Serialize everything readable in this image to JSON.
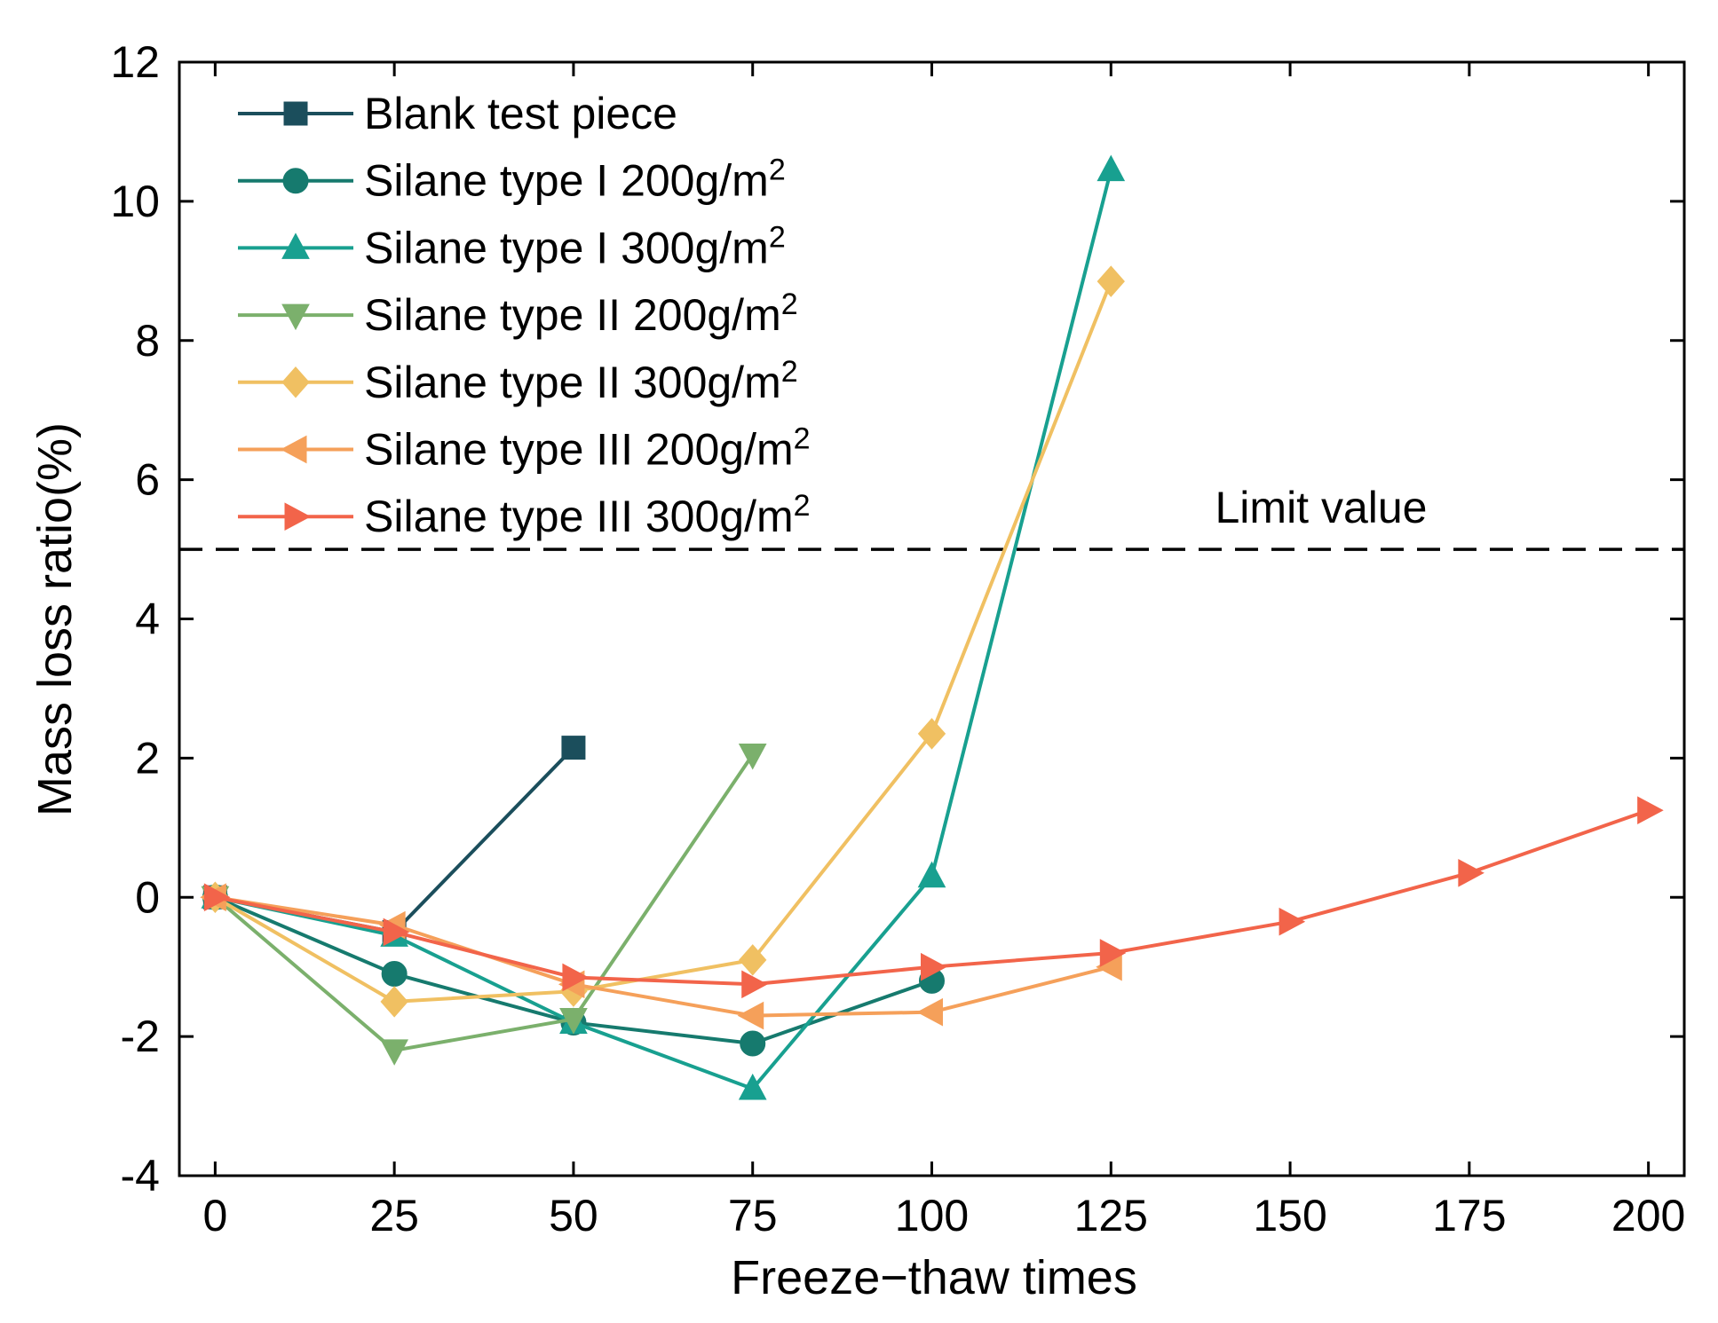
{
  "chart_data": {
    "type": "line",
    "xlabel": "Freeze−thaw times",
    "ylabel": "Mass loss ratio(%)",
    "xlim": [
      -5,
      205
    ],
    "ylim": [
      -4,
      12
    ],
    "xticks": [
      0,
      25,
      50,
      75,
      100,
      125,
      150,
      175,
      200
    ],
    "yticks": [
      -4,
      -2,
      0,
      2,
      4,
      6,
      8,
      10,
      12
    ],
    "grid": false,
    "legend_position": "top-left",
    "reference_line": {
      "y": 5,
      "label": "Limit value",
      "style": "dashed",
      "color": "#000000"
    },
    "series": [
      {
        "name": "Blank test piece",
        "base": "Blank test piece",
        "sup": "",
        "marker": "square",
        "color": "#1b4e5c",
        "x": [
          0,
          25,
          50
        ],
        "y": [
          0,
          -0.5,
          2.15
        ]
      },
      {
        "name": "Silane type I 200g/m2",
        "base": "Silane type I 200g/m",
        "sup": "2",
        "marker": "circle",
        "color": "#167a6e",
        "x": [
          0,
          25,
          50,
          75,
          100
        ],
        "y": [
          0,
          -1.1,
          -1.8,
          -2.1,
          -1.2
        ]
      },
      {
        "name": "Silane type I 300g/m2",
        "base": "Silane type I 300g/m",
        "sup": "2",
        "marker": "triangle-up",
        "color": "#18a090",
        "x": [
          0,
          25,
          50,
          75,
          100,
          125
        ],
        "y": [
          0,
          -0.55,
          -1.8,
          -2.75,
          0.3,
          10.45
        ]
      },
      {
        "name": "Silane type II 200g/m2",
        "base": "Silane type II 200g/m",
        "sup": "2",
        "marker": "triangle-down",
        "color": "#7bb06c",
        "x": [
          0,
          25,
          50,
          75
        ],
        "y": [
          0,
          -2.2,
          -1.75,
          2.05
        ]
      },
      {
        "name": "Silane type II 300g/m2",
        "base": "Silane type II 300g/m",
        "sup": "2",
        "marker": "diamond",
        "color": "#f0c062",
        "x": [
          0,
          25,
          50,
          75,
          100,
          125
        ],
        "y": [
          0,
          -1.5,
          -1.35,
          -0.9,
          2.35,
          8.85
        ]
      },
      {
        "name": "Silane type III 200g/m2",
        "base": "Silane type III 200g/m",
        "sup": "2",
        "marker": "triangle-left",
        "color": "#f5a05a",
        "x": [
          0,
          25,
          50,
          75,
          100,
          125
        ],
        "y": [
          0,
          -0.4,
          -1.25,
          -1.7,
          -1.65,
          -1.0
        ]
      },
      {
        "name": "Silane type III 300g/m2",
        "base": "Silane type III 300g/m",
        "sup": "2",
        "marker": "triangle-right",
        "color": "#f2644a",
        "x": [
          0,
          25,
          50,
          75,
          100,
          125,
          150,
          175,
          200
        ],
        "y": [
          0,
          -0.5,
          -1.15,
          -1.25,
          -1.0,
          -0.8,
          -0.35,
          0.35,
          1.25
        ]
      }
    ]
  }
}
